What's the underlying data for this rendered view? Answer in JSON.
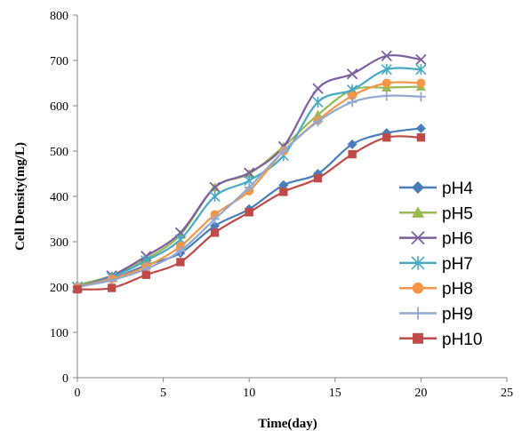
{
  "chart_data": {
    "type": "line",
    "title": "",
    "xlabel": "Time(day)",
    "ylabel": "Cell Density(mg/L)",
    "xlim": [
      0,
      25
    ],
    "ylim": [
      0,
      800
    ],
    "x_ticks": [
      0,
      5,
      10,
      15,
      20,
      25
    ],
    "y_ticks": [
      0,
      100,
      200,
      300,
      400,
      500,
      600,
      700,
      800
    ],
    "grid": false,
    "legend": "right",
    "x": [
      0,
      2,
      4,
      6,
      8,
      10,
      12,
      14,
      16,
      18,
      20
    ],
    "series": [
      {
        "name": "pH4",
        "color": "#4a7ebb",
        "marker": "diamond",
        "values": [
          200,
          218,
          248,
          275,
          335,
          372,
          425,
          450,
          515,
          540,
          550
        ]
      },
      {
        "name": "pH5",
        "color": "#98b954",
        "marker": "triangle",
        "values": [
          205,
          225,
          262,
          315,
          420,
          450,
          510,
          580,
          635,
          640,
          642
        ]
      },
      {
        "name": "pH6",
        "color": "#7d5fa0",
        "marker": "x",
        "values": [
          200,
          225,
          268,
          320,
          420,
          452,
          510,
          638,
          670,
          710,
          702
        ]
      },
      {
        "name": "pH7",
        "color": "#46aac5",
        "marker": "asterisk",
        "values": [
          200,
          222,
          258,
          305,
          400,
          435,
          490,
          608,
          635,
          680,
          680
        ]
      },
      {
        "name": "pH8",
        "color": "#f79646",
        "marker": "circle",
        "values": [
          200,
          218,
          245,
          290,
          360,
          412,
          500,
          568,
          622,
          650,
          650
        ]
      },
      {
        "name": "pH9",
        "color": "#93a9d0",
        "marker": "plus",
        "values": [
          200,
          215,
          240,
          280,
          350,
          420,
          500,
          565,
          608,
          622,
          620
        ]
      },
      {
        "name": "pH10",
        "color": "#be4b48",
        "marker": "square",
        "values": [
          195,
          198,
          227,
          255,
          320,
          365,
          410,
          440,
          493,
          530,
          530
        ]
      }
    ]
  }
}
